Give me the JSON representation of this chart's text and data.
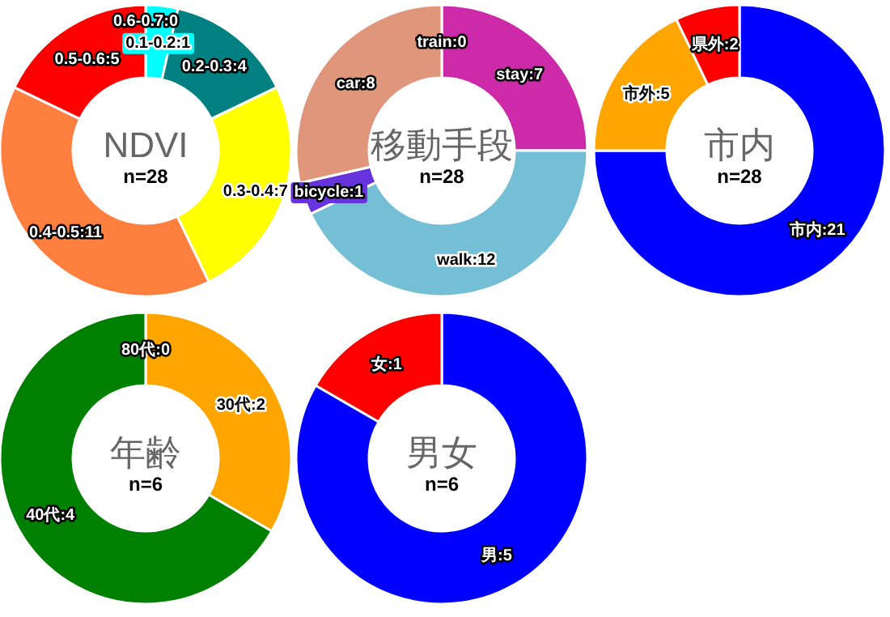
{
  "chart_data": [
    {
      "type": "donut",
      "title": "NDVI",
      "subtitle": "n=28",
      "categories": [
        "0.1-0.2",
        "0.2-0.3",
        "0.3-0.4",
        "0.4-0.5",
        "0.5-0.6",
        "0.6-0.7"
      ],
      "values": [
        1,
        4,
        7,
        11,
        5,
        0
      ],
      "colors": [
        "#00ffff",
        "#008080",
        "#ffff00",
        "#ff7f3f",
        "#ff0000",
        "#800080"
      ],
      "value_labels": [
        ":1",
        ":4",
        ":7",
        ":11",
        ":5",
        ":0"
      ]
    },
    {
      "type": "donut",
      "title": "移動手段",
      "subtitle": "n=28",
      "categories": [
        "stay",
        "walk",
        "bicycle",
        "car",
        "train"
      ],
      "values": [
        7,
        12,
        1,
        8,
        0
      ],
      "colors": [
        "#cc2aa8",
        "#74bfd6",
        "#6633dd",
        "#e0967a",
        "#888888"
      ],
      "value_labels": [
        ":7",
        ":12",
        ":1",
        ":8",
        ":0"
      ]
    },
    {
      "type": "donut",
      "title": "市内",
      "subtitle": "n=28",
      "categories": [
        "市内",
        "市外",
        "県外"
      ],
      "values": [
        21,
        5,
        2
      ],
      "colors": [
        "#0000ff",
        "#ffa500",
        "#ff0000"
      ],
      "value_labels": [
        ":21",
        ":5",
        ":2"
      ]
    },
    {
      "type": "donut",
      "title": "年齢",
      "subtitle": "n=6",
      "categories": [
        "30代",
        "40代",
        "80代"
      ],
      "values": [
        2,
        4,
        0
      ],
      "colors": [
        "#ffa500",
        "#008000",
        "#888888"
      ],
      "value_labels": [
        ":2",
        ":4",
        ":0"
      ]
    },
    {
      "type": "donut",
      "title": "男女",
      "subtitle": "n=6",
      "categories": [
        "男",
        "女"
      ],
      "values": [
        5,
        1
      ],
      "colors": [
        "#0000ff",
        "#ff0000"
      ],
      "value_labels": [
        ":5",
        ":1"
      ]
    }
  ]
}
